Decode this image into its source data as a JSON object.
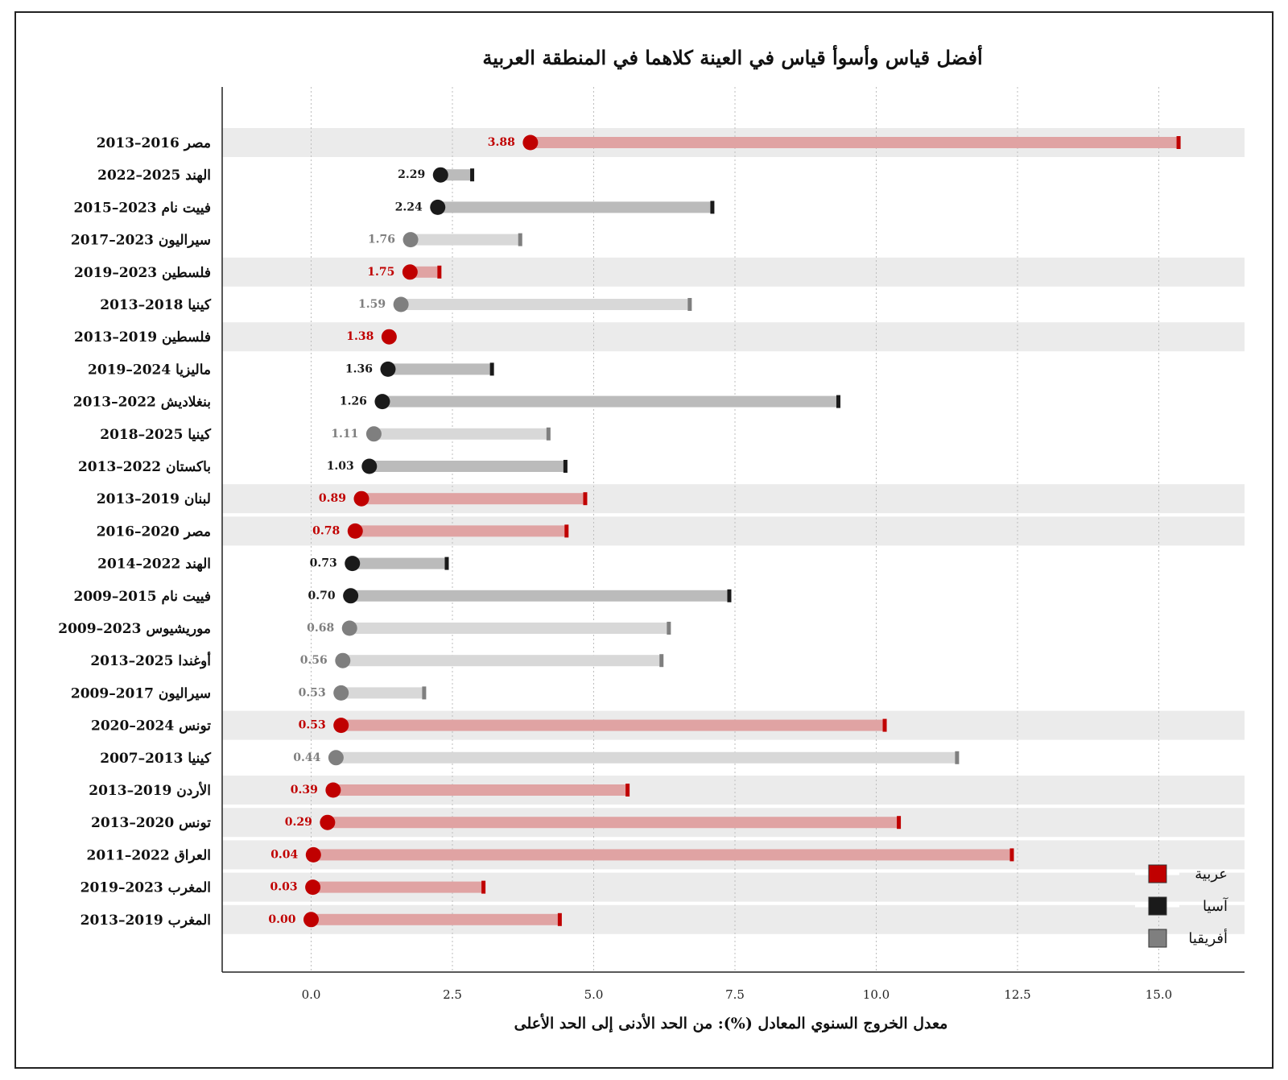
{
  "chart_data": {
    "type": "dumbbell",
    "title": "أفضل قياس وأسوأ قياس في العينة كلاهما في المنطقة العربية",
    "xlabel": "معدل الخروج السنوي المعادل (%): من الحد الأدنى إلى الحد الأعلى",
    "xlim": [
      -1.6,
      16.5
    ],
    "xticks": [
      "0.0",
      "2.5",
      "5.0",
      "7.5",
      "10.0",
      "12.5",
      "15.0"
    ],
    "xtick_values": [
      0,
      2.5,
      5,
      7.5,
      10,
      12.5,
      15
    ],
    "grid": "vertical dotted",
    "legend_position": "bottom-right",
    "groups": [
      {
        "name": "عربية",
        "color": "#c00000",
        "bar_color": "#e0a3a3",
        "end_color": "#c00000"
      },
      {
        "name": "آسيا",
        "color": "#1a1a1a",
        "bar_color": "#bbbbbb",
        "end_color": "#1a1a1a"
      },
      {
        "name": "أفريقيا",
        "color": "#7f7f7f",
        "bar_color": "#d8d8d8",
        "end_color": "#7f7f7f"
      }
    ],
    "rows": [
      {
        "country": "مصر",
        "years": "2016–2013",
        "group": "عربية",
        "min": 3.88,
        "min_label": "3.88",
        "max": 15.35
      },
      {
        "country": "الهند",
        "years": "2025–2022",
        "group": "آسيا",
        "min": 2.29,
        "min_label": "2.29",
        "max": 2.85
      },
      {
        "country": "فييت نام",
        "years": "2023–2015",
        "group": "آسيا",
        "min": 2.24,
        "min_label": "2.24",
        "max": 7.1
      },
      {
        "country": "سيراليون",
        "years": "2023–2017",
        "group": "أفريقيا",
        "min": 1.76,
        "min_label": "1.76",
        "max": 3.7
      },
      {
        "country": "فلسطين",
        "years": "2023–2019",
        "group": "عربية",
        "min": 1.75,
        "min_label": "1.75",
        "max": 2.27
      },
      {
        "country": "كينيا",
        "years": "2018–2013",
        "group": "أفريقيا",
        "min": 1.59,
        "min_label": "1.59",
        "max": 6.7
      },
      {
        "country": "فلسطين",
        "years": "2019–2013",
        "group": "عربية",
        "min": 1.38,
        "min_label": "1.38",
        "max": 1.38
      },
      {
        "country": "ماليزيا",
        "years": "2024–2019",
        "group": "آسيا",
        "min": 1.36,
        "min_label": "1.36",
        "max": 3.2
      },
      {
        "country": "بنغلاديش",
        "years": "2022–2013",
        "group": "آسيا",
        "min": 1.26,
        "min_label": "1.26",
        "max": 9.33
      },
      {
        "country": "كينيا",
        "years": "2025–2018",
        "group": "أفريقيا",
        "min": 1.11,
        "min_label": "1.11",
        "max": 4.2
      },
      {
        "country": "باكستان",
        "years": "2022–2013",
        "group": "آسيا",
        "min": 1.03,
        "min_label": "1.03",
        "max": 4.5
      },
      {
        "country": "لبنان",
        "years": "2019–2013",
        "group": "عربية",
        "min": 0.89,
        "min_label": "0.89",
        "max": 4.85
      },
      {
        "country": "مصر",
        "years": "2020–2016",
        "group": "عربية",
        "min": 0.78,
        "min_label": "0.78",
        "max": 4.52
      },
      {
        "country": "الهند",
        "years": "2022–2014",
        "group": "آسيا",
        "min": 0.73,
        "min_label": "0.73",
        "max": 2.4
      },
      {
        "country": "فييت نام",
        "years": "2015–2009",
        "group": "آسيا",
        "min": 0.7,
        "min_label": "0.70",
        "max": 7.4
      },
      {
        "country": "موريشيوس",
        "years": "2023–2009",
        "group": "أفريقيا",
        "min": 0.68,
        "min_label": "0.68",
        "max": 6.33
      },
      {
        "country": "أوغندا",
        "years": "2025–2013",
        "group": "أفريقيا",
        "min": 0.56,
        "min_label": "0.56",
        "max": 6.2
      },
      {
        "country": "سيراليون",
        "years": "2017–2009",
        "group": "أفريقيا",
        "min": 0.53,
        "min_label": "0.53",
        "max": 2.0
      },
      {
        "country": "تونس",
        "years": "2024–2020",
        "group": "عربية",
        "min": 0.53,
        "min_label": "0.53",
        "max": 10.15
      },
      {
        "country": "كينيا",
        "years": "2013–2007",
        "group": "أفريقيا",
        "min": 0.44,
        "min_label": "0.44",
        "max": 11.43
      },
      {
        "country": "الأردن",
        "years": "2019–2013",
        "group": "عربية",
        "min": 0.39,
        "min_label": "0.39",
        "max": 5.6
      },
      {
        "country": "تونس",
        "years": "2020–2013",
        "group": "عربية",
        "min": 0.29,
        "min_label": "0.29",
        "max": 10.4
      },
      {
        "country": "العراق",
        "years": "2022–2011",
        "group": "عربية",
        "min": 0.04,
        "min_label": "0.04",
        "max": 12.4
      },
      {
        "country": "المغرب",
        "years": "2023–2019",
        "group": "عربية",
        "min": 0.03,
        "min_label": "0.03",
        "max": 3.05
      },
      {
        "country": "المغرب",
        "years": "2019–2013",
        "group": "عربية",
        "min": 0.0,
        "min_label": "0.00",
        "max": 4.4
      }
    ]
  }
}
